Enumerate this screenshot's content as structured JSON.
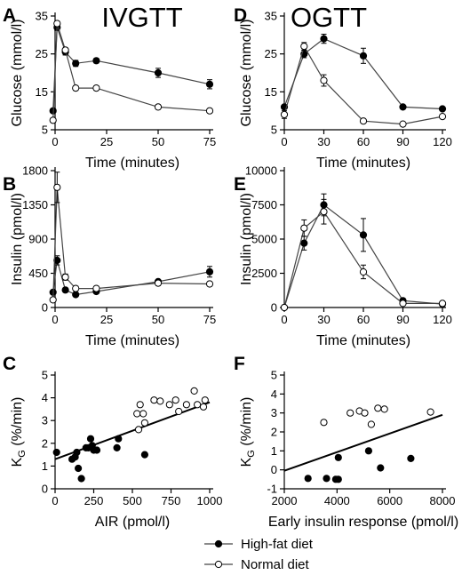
{
  "figure": {
    "column_titles": [
      "IVGTT",
      "OGTT"
    ],
    "legend": [
      {
        "label": "High-fat diet",
        "marker": "filled"
      },
      {
        "label": "Normal diet",
        "marker": "open"
      }
    ],
    "colors": {
      "filled": "#000000",
      "open": "#ffffff",
      "line": "#444444"
    }
  },
  "chart_data": [
    {
      "id": "A",
      "type": "line",
      "column_title": "IVGTT",
      "xlabel": "Time (minutes)",
      "ylabel": "Glucose (mmol/l)",
      "xlim": [
        0,
        75
      ],
      "ylim": [
        5,
        35
      ],
      "xticks": [
        0,
        25,
        50,
        75
      ],
      "yticks": [
        5,
        15,
        25,
        35
      ],
      "series": [
        {
          "name": "High-fat diet",
          "marker": "filled",
          "x": [
            -1,
            1,
            5,
            10,
            20,
            50,
            75
          ],
          "y": [
            10,
            32,
            25.5,
            22.5,
            23.2,
            20,
            17
          ],
          "err": [
            0,
            0.8,
            0.8,
            0.8,
            0.6,
            1.2,
            1.2
          ]
        },
        {
          "name": "Normal diet",
          "marker": "open",
          "x": [
            -1,
            1,
            5,
            10,
            20,
            50,
            75
          ],
          "y": [
            7.5,
            33,
            26,
            16,
            16,
            11,
            10
          ],
          "err": [
            0,
            0.6,
            0.6,
            0.6,
            0.6,
            0.6,
            0.5
          ]
        }
      ]
    },
    {
      "id": "B",
      "type": "line",
      "xlabel": "Time (minutes)",
      "ylabel": "Insulin (pmol/l)",
      "xlim": [
        0,
        75
      ],
      "ylim": [
        0,
        1800
      ],
      "xticks": [
        0,
        25,
        50,
        75
      ],
      "yticks": [
        0,
        450,
        900,
        1350,
        1800
      ],
      "series": [
        {
          "name": "High-fat diet",
          "marker": "filled",
          "x": [
            -1,
            1,
            5,
            10,
            20,
            50,
            75
          ],
          "y": [
            200,
            620,
            230,
            170,
            210,
            340,
            470
          ],
          "err": [
            0,
            60,
            20,
            15,
            20,
            20,
            70
          ]
        },
        {
          "name": "Normal diet",
          "marker": "open",
          "x": [
            -1,
            1,
            5,
            10,
            20,
            50,
            75
          ],
          "y": [
            100,
            1580,
            400,
            250,
            250,
            320,
            310
          ],
          "err": [
            0,
            200,
            40,
            30,
            30,
            30,
            30
          ]
        }
      ]
    },
    {
      "id": "C",
      "type": "scatter",
      "xlabel": "AIR (pmol/l)",
      "ylabel": "K_G (%/min)",
      "xlim": [
        0,
        1000
      ],
      "ylim": [
        0,
        5
      ],
      "xticks": [
        0,
        250,
        500,
        750,
        1000
      ],
      "yticks": [
        0,
        1,
        2,
        3,
        4,
        5
      ],
      "series": [
        {
          "name": "High-fat diet",
          "marker": "filled",
          "points": [
            [
              10,
              1.6
            ],
            [
              110,
              1.3
            ],
            [
              130,
              1.4
            ],
            [
              140,
              1.6
            ],
            [
              150,
              0.9
            ],
            [
              170,
              0.45
            ],
            [
              200,
              1.8
            ],
            [
              215,
              1.8
            ],
            [
              230,
              2.2
            ],
            [
              240,
              1.9
            ],
            [
              250,
              1.7
            ],
            [
              270,
              1.7
            ],
            [
              400,
              1.8
            ],
            [
              410,
              2.2
            ],
            [
              580,
              1.5
            ]
          ]
        },
        {
          "name": "Normal diet",
          "marker": "open",
          "points": [
            [
              530,
              3.3
            ],
            [
              540,
              2.6
            ],
            [
              550,
              3.7
            ],
            [
              570,
              3.3
            ],
            [
              580,
              2.9
            ],
            [
              640,
              3.9
            ],
            [
              680,
              3.85
            ],
            [
              740,
              3.7
            ],
            [
              780,
              3.9
            ],
            [
              800,
              3.4
            ],
            [
              850,
              3.7
            ],
            [
              900,
              4.3
            ],
            [
              920,
              3.7
            ],
            [
              960,
              3.6
            ],
            [
              970,
              3.9
            ]
          ]
        }
      ],
      "fit": {
        "x": [
          0,
          1000
        ],
        "y": [
          1.3,
          3.8
        ]
      }
    },
    {
      "id": "D",
      "type": "line",
      "column_title": "OGTT",
      "xlabel": "Time (minutes)",
      "ylabel": "Glucose (mmol/l)",
      "xlim": [
        0,
        120
      ],
      "ylim": [
        5,
        35
      ],
      "xticks": [
        0,
        30,
        60,
        90,
        120
      ],
      "yticks": [
        5,
        15,
        25,
        35
      ],
      "series": [
        {
          "name": "High-fat diet",
          "marker": "filled",
          "x": [
            0,
            15,
            30,
            60,
            90,
            120
          ],
          "y": [
            11,
            25,
            29,
            24.5,
            11,
            10.5
          ],
          "err": [
            0,
            1.0,
            1.2,
            2.0,
            0.5,
            0.5
          ]
        },
        {
          "name": "Normal diet",
          "marker": "open",
          "x": [
            0,
            15,
            30,
            60,
            90,
            120
          ],
          "y": [
            9,
            27,
            18,
            7.3,
            6.5,
            8.5
          ],
          "err": [
            1.0,
            1.0,
            1.5,
            0.4,
            0.4,
            0.4
          ]
        }
      ]
    },
    {
      "id": "E",
      "type": "line",
      "xlabel": "Time (minutes)",
      "ylabel": "Insulin (pmol/l)",
      "xlim": [
        0,
        120
      ],
      "ylim": [
        0,
        10000
      ],
      "xticks": [
        0,
        30,
        60,
        90,
        120
      ],
      "yticks": [
        0,
        2500,
        5000,
        7500,
        10000
      ],
      "series": [
        {
          "name": "High-fat diet",
          "marker": "filled",
          "x": [
            0,
            15,
            30,
            60,
            90,
            120
          ],
          "y": [
            0,
            4700,
            7500,
            5300,
            500,
            250
          ],
          "err": [
            0,
            500,
            800,
            1200,
            150,
            80
          ]
        },
        {
          "name": "Normal diet",
          "marker": "open",
          "x": [
            0,
            15,
            30,
            60,
            90,
            120
          ],
          "y": [
            0,
            5800,
            7000,
            2600,
            300,
            300
          ],
          "err": [
            0,
            600,
            900,
            500,
            100,
            80
          ]
        }
      ]
    },
    {
      "id": "F",
      "type": "scatter",
      "xlabel": "Early insulin response (pmol/l)",
      "ylabel": "K_G (%/min)",
      "xlim": [
        2000,
        8000
      ],
      "ylim": [
        -1,
        5
      ],
      "xticks": [
        2000,
        4000,
        6000,
        8000
      ],
      "yticks": [
        -1,
        0,
        1,
        2,
        3,
        4,
        5
      ],
      "series": [
        {
          "name": "High-fat diet",
          "marker": "filled",
          "points": [
            [
              2900,
              -0.45
            ],
            [
              3600,
              -0.45
            ],
            [
              3950,
              -0.5
            ],
            [
              4050,
              0.65
            ],
            [
              4050,
              -0.5
            ],
            [
              5200,
              1.0
            ],
            [
              5650,
              0.1
            ],
            [
              6800,
              0.6
            ]
          ]
        },
        {
          "name": "Normal diet",
          "marker": "open",
          "points": [
            [
              3500,
              2.5
            ],
            [
              4500,
              3.0
            ],
            [
              4850,
              3.1
            ],
            [
              5050,
              3.0
            ],
            [
              5300,
              2.4
            ],
            [
              5550,
              3.25
            ],
            [
              5800,
              3.2
            ],
            [
              7550,
              3.05
            ]
          ]
        }
      ],
      "fit": {
        "x": [
          2000,
          8000
        ],
        "y": [
          -0.05,
          2.9
        ]
      }
    }
  ]
}
